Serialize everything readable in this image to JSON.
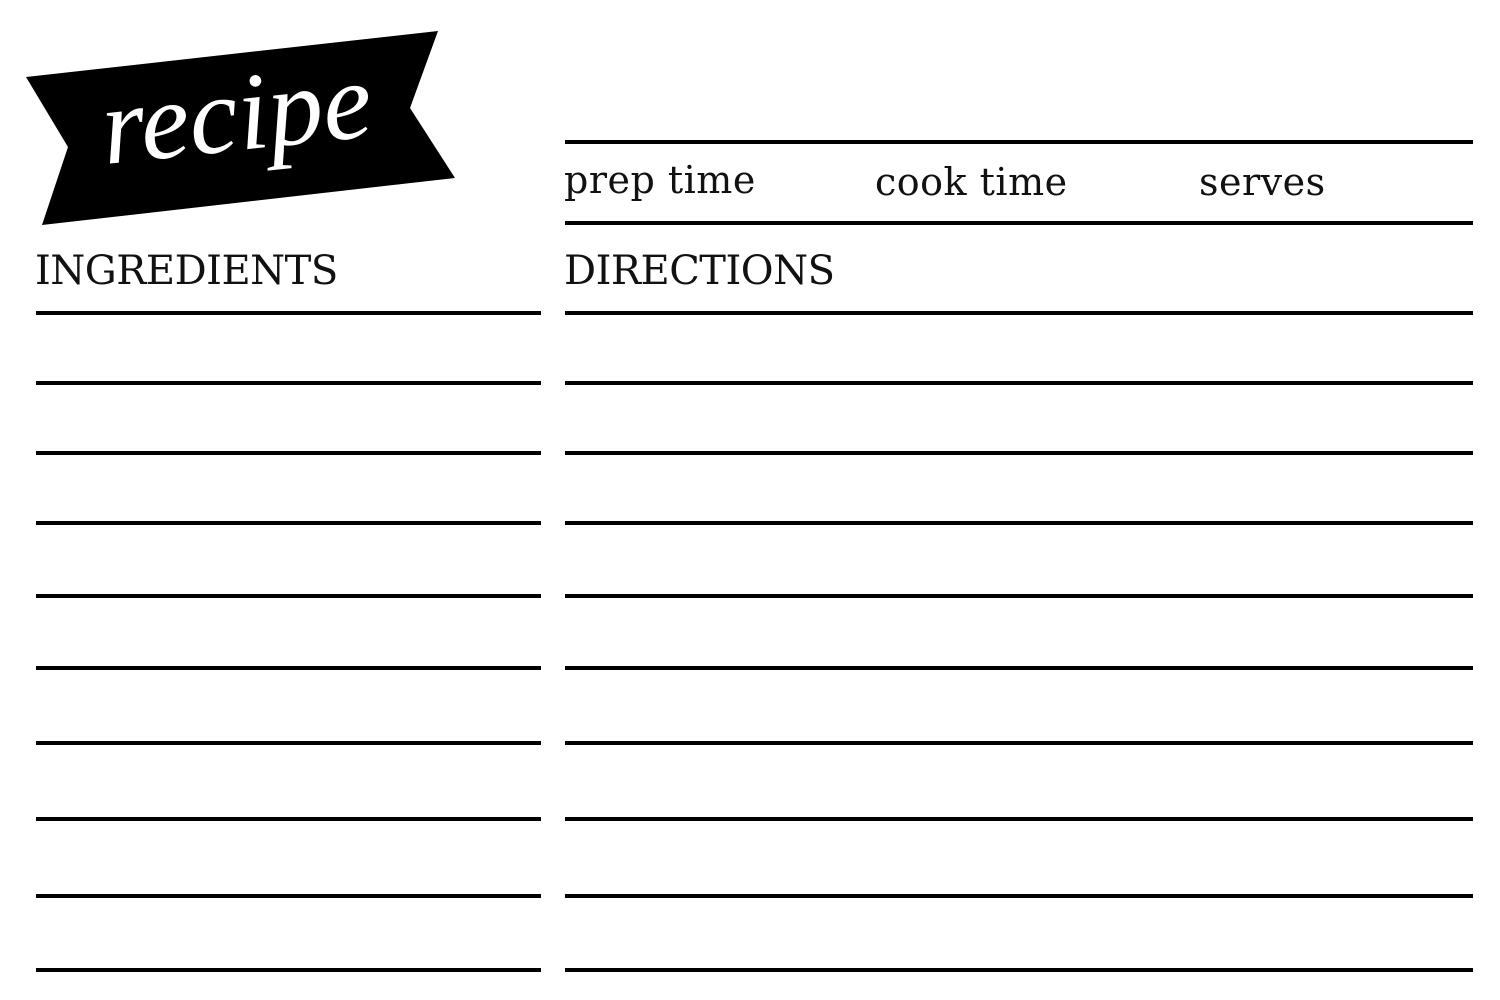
{
  "banner": {
    "title": "recipe"
  },
  "meta": {
    "prep_time_label": "prep time",
    "cook_time_label": "cook time",
    "serves_label": "serves"
  },
  "ingredients": {
    "heading": "INGREDIENTS",
    "line_count": 10
  },
  "directions": {
    "heading": "DIRECTIONS",
    "line_count": 10
  },
  "colors": {
    "ink": "#000000",
    "paper": "#ffffff"
  }
}
